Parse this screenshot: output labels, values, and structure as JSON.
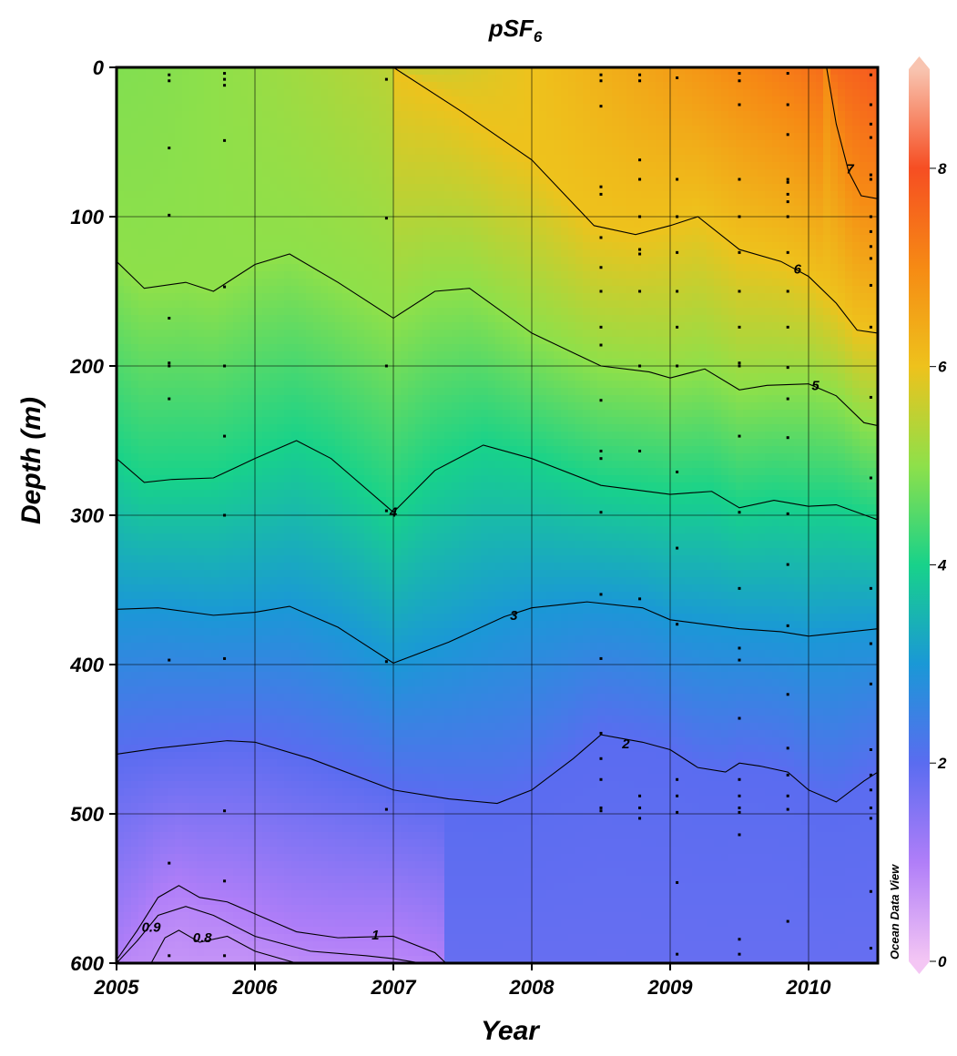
{
  "chart_data": {
    "type": "heatmap",
    "title": "pSF",
    "title_subscript": "6",
    "xlabel": "Year",
    "ylabel": "Depth (m)",
    "xlim": [
      2005,
      2010.5
    ],
    "ylim": [
      0,
      600
    ],
    "y_inverted": true,
    "x_ticks": [
      "2005",
      "2006",
      "2007",
      "2008",
      "2009",
      "2010"
    ],
    "y_ticks": [
      "0",
      "100",
      "200",
      "300",
      "400",
      "500",
      "600"
    ],
    "grid": true,
    "colorbar": {
      "range": [
        0,
        9
      ],
      "ticks": [
        "0",
        "2",
        "4",
        "6",
        "8"
      ],
      "stops": [
        {
          "v": 0,
          "color": "#f4c6f4"
        },
        {
          "v": 1,
          "color": "#b07ef8"
        },
        {
          "v": 2,
          "color": "#5a6cf0"
        },
        {
          "v": 3,
          "color": "#1a98d6"
        },
        {
          "v": 4,
          "color": "#18d28a"
        },
        {
          "v": 5,
          "color": "#8ee04a"
        },
        {
          "v": 6,
          "color": "#eec21c"
        },
        {
          "v": 7,
          "color": "#f68a14"
        },
        {
          "v": 8,
          "color": "#f64e22"
        },
        {
          "v": 9,
          "color": "#f8c4b0"
        }
      ]
    },
    "watermark": "Ocean Data View",
    "contours": [
      {
        "level": "7",
        "points": [
          [
            2010.13,
            0
          ],
          [
            2010.2,
            38
          ],
          [
            2010.29,
            70
          ],
          [
            2010.38,
            86
          ],
          [
            2010.5,
            88
          ]
        ],
        "label_at": [
          2010.3,
          68
        ]
      },
      {
        "level": "6",
        "points": [
          [
            2007.0,
            0
          ],
          [
            2007.5,
            30
          ],
          [
            2008.0,
            62
          ],
          [
            2008.45,
            106
          ],
          [
            2008.75,
            112
          ],
          [
            2009.0,
            106
          ],
          [
            2009.2,
            100
          ],
          [
            2009.5,
            122
          ],
          [
            2009.8,
            130
          ],
          [
            2010.0,
            140
          ],
          [
            2010.2,
            158
          ],
          [
            2010.35,
            176
          ],
          [
            2010.5,
            178
          ]
        ],
        "label_at": [
          2009.92,
          135
        ]
      },
      {
        "level": "5",
        "points": [
          [
            2005.0,
            130
          ],
          [
            2005.2,
            148
          ],
          [
            2005.5,
            144
          ],
          [
            2005.7,
            150
          ],
          [
            2006.0,
            132
          ],
          [
            2006.25,
            125
          ],
          [
            2006.6,
            144
          ],
          [
            2007.0,
            168
          ],
          [
            2007.3,
            150
          ],
          [
            2007.55,
            148
          ],
          [
            2008.0,
            178
          ],
          [
            2008.5,
            200
          ],
          [
            2008.85,
            204
          ],
          [
            2009.0,
            208
          ],
          [
            2009.25,
            202
          ],
          [
            2009.5,
            216
          ],
          [
            2009.7,
            213
          ],
          [
            2010.0,
            212
          ],
          [
            2010.2,
            220
          ],
          [
            2010.4,
            238
          ],
          [
            2010.5,
            240
          ]
        ],
        "label_at": [
          2010.05,
          213
        ]
      },
      {
        "level": "4",
        "points": [
          [
            2005.0,
            262
          ],
          [
            2005.2,
            278
          ],
          [
            2005.4,
            276
          ],
          [
            2005.7,
            275
          ],
          [
            2006.0,
            262
          ],
          [
            2006.3,
            250
          ],
          [
            2006.55,
            262
          ],
          [
            2007.0,
            298
          ],
          [
            2007.3,
            270
          ],
          [
            2007.65,
            253
          ],
          [
            2008.0,
            262
          ],
          [
            2008.5,
            280
          ],
          [
            2009.0,
            286
          ],
          [
            2009.3,
            284
          ],
          [
            2009.5,
            295
          ],
          [
            2009.75,
            290
          ],
          [
            2010.0,
            294
          ],
          [
            2010.2,
            293
          ],
          [
            2010.5,
            303
          ]
        ],
        "label_at": [
          2007.0,
          298
        ]
      },
      {
        "level": "3",
        "points": [
          [
            2005.0,
            363
          ],
          [
            2005.3,
            362
          ],
          [
            2005.7,
            367
          ],
          [
            2006.0,
            365
          ],
          [
            2006.25,
            361
          ],
          [
            2006.6,
            375
          ],
          [
            2007.0,
            399
          ],
          [
            2007.4,
            385
          ],
          [
            2007.8,
            368
          ],
          [
            2008.0,
            362
          ],
          [
            2008.4,
            358
          ],
          [
            2008.8,
            362
          ],
          [
            2009.0,
            370
          ],
          [
            2009.5,
            376
          ],
          [
            2009.8,
            378
          ],
          [
            2010.0,
            381
          ],
          [
            2010.3,
            378
          ],
          [
            2010.5,
            376
          ]
        ],
        "label_at": [
          2007.87,
          367
        ]
      },
      {
        "level": "2",
        "points": [
          [
            2005.0,
            460
          ],
          [
            2005.3,
            456
          ],
          [
            2005.8,
            451
          ],
          [
            2006.0,
            452
          ],
          [
            2006.4,
            463
          ],
          [
            2007.0,
            484
          ],
          [
            2007.4,
            490
          ],
          [
            2007.75,
            493
          ],
          [
            2008.0,
            484
          ],
          [
            2008.3,
            463
          ],
          [
            2008.5,
            447
          ],
          [
            2008.8,
            452
          ],
          [
            2009.0,
            457
          ],
          [
            2009.2,
            469
          ],
          [
            2009.4,
            472
          ],
          [
            2009.5,
            466
          ],
          [
            2009.65,
            468
          ],
          [
            2009.85,
            472
          ],
          [
            2010.0,
            484
          ],
          [
            2010.2,
            492
          ],
          [
            2010.4,
            478
          ],
          [
            2010.5,
            472
          ]
        ],
        "label_at": [
          2008.68,
          453
        ]
      },
      {
        "level": "1",
        "points": [
          [
            2005.0,
            598
          ],
          [
            2005.15,
            578
          ],
          [
            2005.3,
            556
          ],
          [
            2005.45,
            548
          ],
          [
            2005.6,
            556
          ],
          [
            2005.8,
            559
          ],
          [
            2006.0,
            567
          ],
          [
            2006.3,
            579
          ],
          [
            2006.6,
            583
          ],
          [
            2007.0,
            582
          ],
          [
            2007.3,
            593
          ],
          [
            2007.38,
            600
          ]
        ],
        "label_at": [
          2006.87,
          581
        ]
      },
      {
        "level": "0.9",
        "points": [
          [
            2005.0,
            600
          ],
          [
            2005.15,
            585
          ],
          [
            2005.3,
            568
          ],
          [
            2005.5,
            562
          ],
          [
            2005.7,
            568
          ],
          [
            2006.0,
            582
          ],
          [
            2006.4,
            592
          ],
          [
            2006.8,
            595
          ],
          [
            2007.0,
            597
          ],
          [
            2007.2,
            600
          ]
        ],
        "label_at": [
          2005.25,
          576
        ]
      },
      {
        "level": "0.8",
        "points": [
          [
            2005.25,
            600
          ],
          [
            2005.35,
            583
          ],
          [
            2005.45,
            578
          ],
          [
            2005.6,
            586
          ],
          [
            2005.8,
            582
          ],
          [
            2006.0,
            592
          ],
          [
            2006.3,
            600
          ]
        ],
        "label_at": [
          2005.62,
          583
        ]
      }
    ],
    "stations": [
      {
        "x": 2005.38,
        "depths": [
          5,
          9,
          54,
          99,
          168,
          198,
          200,
          222,
          397,
          533,
          595
        ]
      },
      {
        "x": 2005.78,
        "depths": [
          4,
          8,
          12,
          49,
          147,
          200,
          247,
          300,
          396,
          498,
          545,
          595
        ]
      },
      {
        "x": 2006.95,
        "depths": [
          8,
          101,
          200,
          297,
          398,
          497
        ]
      },
      {
        "x": 2008.5,
        "depths": [
          5,
          9,
          26,
          80,
          85,
          114,
          134,
          150,
          174,
          186,
          223,
          257,
          262,
          298,
          353,
          396,
          446,
          463,
          477,
          496,
          498
        ]
      },
      {
        "x": 2008.78,
        "depths": [
          5,
          9,
          62,
          75,
          100,
          122,
          125,
          150,
          200,
          257,
          356,
          488,
          496,
          503
        ]
      },
      {
        "x": 2009.05,
        "depths": [
          7,
          75,
          100,
          124,
          150,
          174,
          200,
          271,
          322,
          373,
          477,
          488,
          499,
          546,
          594,
          600
        ]
      },
      {
        "x": 2009.5,
        "depths": [
          4,
          9,
          25,
          75,
          100,
          124,
          150,
          174,
          198,
          200,
          247,
          298,
          349,
          389,
          397,
          436,
          477,
          488,
          496,
          499,
          514,
          584,
          594
        ]
      },
      {
        "x": 2009.85,
        "depths": [
          4,
          25,
          45,
          75,
          77,
          85,
          90,
          100,
          124,
          150,
          174,
          201,
          222,
          248,
          299,
          333,
          374,
          420,
          456,
          474,
          488,
          497,
          572
        ]
      },
      {
        "x": 2010.45,
        "depths": [
          5,
          25,
          38,
          47,
          72,
          75,
          100,
          110,
          120,
          128,
          146,
          174,
          221,
          275,
          349,
          386,
          413,
          457,
          474,
          484,
          496,
          503,
          552,
          590
        ]
      }
    ]
  }
}
